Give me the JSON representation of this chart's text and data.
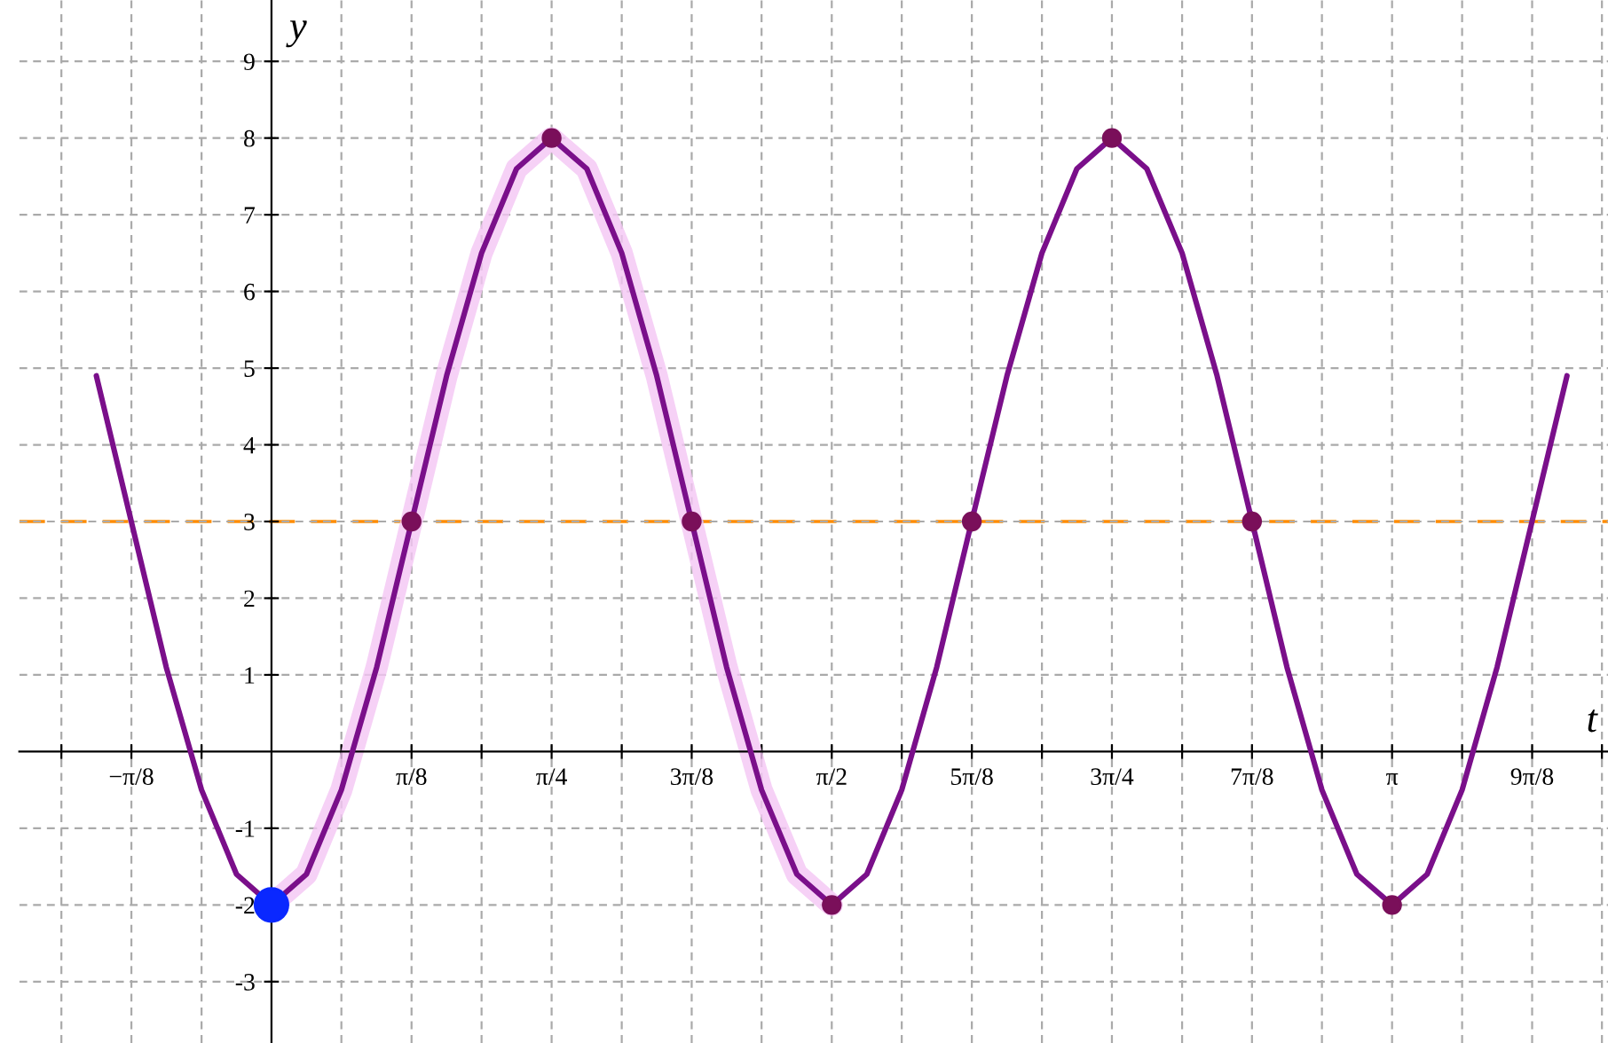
{
  "chart_data": {
    "type": "line",
    "xlabel": "t",
    "ylabel": "y",
    "xlim": [
      -0.707,
      3.747
    ],
    "ylim": [
      -3.8,
      9.8
    ],
    "xticks": [
      {
        "value": -0.589,
        "label": null
      },
      {
        "value": -0.3927,
        "label": "−π/8"
      },
      {
        "value": -0.196,
        "label": null
      },
      {
        "value": 0.196,
        "label": null
      },
      {
        "value": 0.3927,
        "label": "π/8"
      },
      {
        "value": 0.589,
        "label": null
      },
      {
        "value": 0.7854,
        "label": "π/4"
      },
      {
        "value": 0.982,
        "label": null
      },
      {
        "value": 1.1781,
        "label": "3π/8"
      },
      {
        "value": 1.374,
        "label": null
      },
      {
        "value": 1.5708,
        "label": "π/2"
      },
      {
        "value": 1.767,
        "label": null
      },
      {
        "value": 1.9635,
        "label": "5π/8"
      },
      {
        "value": 2.16,
        "label": null
      },
      {
        "value": 2.3562,
        "label": "3π/4"
      },
      {
        "value": 2.553,
        "label": null
      },
      {
        "value": 2.7489,
        "label": "7π/8"
      },
      {
        "value": 2.945,
        "label": null
      },
      {
        "value": 3.1416,
        "label": "π"
      },
      {
        "value": 3.338,
        "label": null
      },
      {
        "value": 3.5343,
        "label": "9π/8"
      },
      {
        "value": 3.73,
        "label": null
      }
    ],
    "yticks": [
      -3,
      -2,
      -1,
      1,
      2,
      3,
      4,
      5,
      6,
      7,
      8,
      9
    ],
    "grid": true,
    "ref_lines": [
      {
        "axis": "y",
        "value": 3,
        "color": "#ff8c00",
        "line_style": "dashed"
      }
    ],
    "series": [
      {
        "color": "#f4c6f4",
        "x": [
          0,
          0.098,
          0.196,
          0.295,
          0.393,
          0.491,
          0.589,
          0.687,
          0.785,
          0.884,
          0.982,
          1.08,
          1.178,
          1.276,
          1.374,
          1.473,
          1.571
        ],
        "values": [
          -2,
          -1.6,
          -0.5,
          1.1,
          3,
          4.9,
          6.5,
          7.6,
          8,
          7.6,
          6.5,
          4.9,
          3,
          1.1,
          -0.5,
          -1.6,
          -2
        ]
      },
      {
        "color": "#7a0f8a",
        "marker": "none",
        "x": [
          -0.491,
          -0.393,
          -0.295,
          -0.196,
          -0.098,
          0,
          0.098,
          0.196,
          0.295,
          0.393,
          0.491,
          0.589,
          0.687,
          0.785,
          0.884,
          0.982,
          1.08,
          1.178,
          1.276,
          1.374,
          1.473,
          1.571,
          1.669,
          1.767,
          1.865,
          1.963,
          2.062,
          2.16,
          2.258,
          2.356,
          2.454,
          2.553,
          2.651,
          2.749,
          2.847,
          2.945,
          3.043,
          3.142,
          3.24,
          3.338,
          3.436,
          3.534,
          3.632
        ],
        "values": [
          4.9,
          3,
          1.1,
          -0.5,
          -1.6,
          -2,
          -1.6,
          -0.5,
          1.1,
          3,
          4.9,
          6.5,
          7.6,
          8,
          7.6,
          6.5,
          4.9,
          3,
          1.1,
          -0.5,
          -1.6,
          -2,
          -1.6,
          -0.5,
          1.1,
          3,
          4.9,
          6.5,
          7.6,
          8,
          7.6,
          6.5,
          4.9,
          3,
          1.1,
          -0.5,
          -1.6,
          -2,
          -1.6,
          -0.5,
          1.1,
          3,
          4.9
        ]
      },
      {
        "type": "scatter",
        "color": "#7a0f5a",
        "marker": "circle",
        "x": [
          0.3927,
          0.7854,
          1.1781,
          1.5708,
          1.9635,
          2.3562,
          2.7489,
          3.1416
        ],
        "values": [
          3,
          8,
          3,
          -2,
          3,
          8,
          3,
          -2
        ]
      },
      {
        "type": "scatter",
        "color": "#0a28ff",
        "marker": "circle",
        "x": [
          0
        ],
        "values": [
          -2
        ]
      }
    ]
  }
}
